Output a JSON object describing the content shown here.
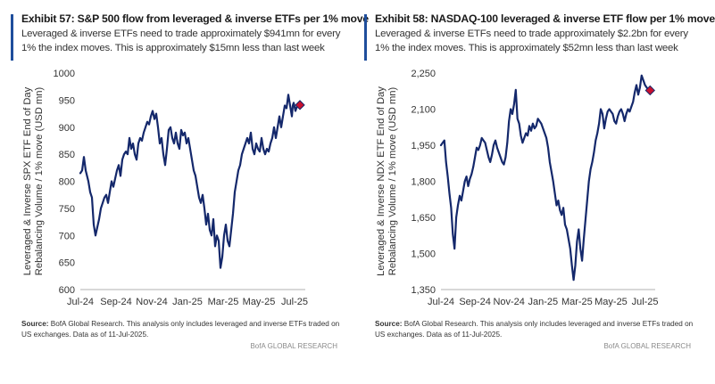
{
  "panels": [
    {
      "title": "Exhibit 57: S&P 500 flow from leveraged & inverse ETFs per 1% move",
      "subtitle": "Leveraged & inverse ETFs need to trade approximately $941mn for every 1% the index moves. This is approximately $15mn less than last week",
      "source_label": "Source:",
      "source_text": " BofA Global Research.  This analysis only includes leveraged and inverse ETFs traded on US exchanges.  Data as of 11-Jul-2025.",
      "brand": "BofA GLOBAL RESEARCH"
    },
    {
      "title": "Exhibit 58: NASDAQ-100 leveraged & inverse ETF flow per 1% move",
      "subtitle": "Leveraged & inverse ETFs need to trade approximately $2.2bn for every 1% the index moves. This is approximately $52mn less than last week",
      "source_label": "Source:",
      "source_text": " BofA Global Research.  This analysis only includes leveraged and inverse ETFs traded on US exchanges.  Data as of 11-Jul-2025.",
      "brand": "BofA GLOBAL RESEARCH"
    }
  ],
  "colors": {
    "line": "#14286b",
    "marker": "#c8102e",
    "accent": "#1f4e9c"
  },
  "chart_data": [
    {
      "type": "line",
      "ylabel_lines": [
        "Leveraged & Inverse SPX ETF End of Day",
        "Rebalancing Volume / 1% move (USD mn)"
      ],
      "ylim": [
        600,
        1000
      ],
      "yticks": [
        600,
        650,
        700,
        750,
        800,
        850,
        900,
        950,
        1000
      ],
      "ytick_labels": [
        "600",
        "650",
        "700",
        "750",
        "800",
        "850",
        "900",
        "950",
        "1000"
      ],
      "xlim": [
        0,
        12.6
      ],
      "xticks": [
        0,
        2,
        4,
        6,
        8,
        10,
        12
      ],
      "xtick_labels": [
        "Jul-24",
        "Sep-24",
        "Nov-24",
        "Jan-25",
        "Mar-25",
        "May-25",
        "Jul-25"
      ],
      "grid": false,
      "marker_last": true,
      "series": [
        {
          "x": [
            0,
            0.1,
            0.2,
            0.3,
            0.45,
            0.55,
            0.65,
            0.75,
            0.85,
            0.95,
            1.05,
            1.15,
            1.25,
            1.35,
            1.45,
            1.55,
            1.65,
            1.75,
            1.85,
            1.95,
            2.05,
            2.15,
            2.25,
            2.35,
            2.45,
            2.55,
            2.65,
            2.75,
            2.85,
            2.95,
            3.05,
            3.15,
            3.25,
            3.35,
            3.45,
            3.55,
            3.65,
            3.75,
            3.85,
            3.95,
            4.05,
            4.15,
            4.25,
            4.35,
            4.45,
            4.55,
            4.65,
            4.75,
            4.85,
            4.95,
            5.05,
            5.15,
            5.25,
            5.35,
            5.45,
            5.55,
            5.65,
            5.75,
            5.85,
            5.95,
            6.05,
            6.15,
            6.25,
            6.35,
            6.45,
            6.55,
            6.65,
            6.75,
            6.85,
            6.95,
            7.05,
            7.15,
            7.25,
            7.35,
            7.45,
            7.55,
            7.65,
            7.75,
            7.85,
            7.95,
            8.05,
            8.15,
            8.25,
            8.35,
            8.45,
            8.55,
            8.65,
            8.75,
            8.85,
            8.95,
            9.05,
            9.15,
            9.25,
            9.35,
            9.45,
            9.55,
            9.65,
            9.75,
            9.85,
            9.95,
            10.05,
            10.15,
            10.25,
            10.35,
            10.45,
            10.55,
            10.65,
            10.75,
            10.85,
            10.95,
            11.05,
            11.15,
            11.25,
            11.35,
            11.45,
            11.55,
            11.65,
            11.75,
            11.85,
            11.9,
            11.95,
            12.05,
            12.15,
            12.2,
            12.3
          ],
          "y": [
            815,
            820,
            845,
            820,
            800,
            780,
            770,
            720,
            700,
            715,
            730,
            750,
            760,
            770,
            775,
            760,
            780,
            800,
            790,
            805,
            820,
            830,
            810,
            840,
            850,
            855,
            850,
            880,
            860,
            870,
            850,
            840,
            870,
            880,
            875,
            890,
            900,
            910,
            905,
            920,
            930,
            915,
            925,
            900,
            870,
            880,
            850,
            830,
            860,
            895,
            900,
            880,
            870,
            890,
            870,
            860,
            895,
            885,
            890,
            870,
            880,
            860,
            840,
            820,
            810,
            790,
            770,
            760,
            775,
            750,
            720,
            740,
            710,
            700,
            730,
            680,
            700,
            690,
            640,
            660,
            700,
            720,
            690,
            680,
            710,
            740,
            780,
            800,
            820,
            830,
            850,
            860,
            870,
            880,
            870,
            890,
            860,
            850,
            870,
            860,
            855,
            880,
            860,
            850,
            860,
            855,
            870,
            880,
            900,
            880,
            900,
            920,
            900,
            920,
            940,
            935,
            960,
            940,
            920,
            940,
            945,
            930,
            940,
            940,
            941
          ]
        }
      ]
    },
    {
      "type": "line",
      "ylabel_lines": [
        "Leveraged & Inverse NDX ETF End of Day",
        "Rebalancing Volume / 1% move (USD mn)"
      ],
      "ylim": [
        1350,
        2250
      ],
      "yticks": [
        1350,
        1500,
        1650,
        1800,
        1950,
        2100,
        2250
      ],
      "ytick_labels": [
        "1,350",
        "1,500",
        "1,650",
        "1,800",
        "1,950",
        "2,100",
        "2,250"
      ],
      "xlim": [
        0,
        12.6
      ],
      "xticks": [
        0,
        2,
        4,
        6,
        8,
        10,
        12
      ],
      "xtick_labels": [
        "Jul-24",
        "Sep-24",
        "Nov-24",
        "Jan-25",
        "Mar-25",
        "May-25",
        "Jul-25"
      ],
      "grid": false,
      "marker_last": true,
      "series": [
        {
          "x": [
            0,
            0.1,
            0.2,
            0.3,
            0.4,
            0.5,
            0.6,
            0.7,
            0.8,
            0.9,
            1.0,
            1.1,
            1.2,
            1.3,
            1.4,
            1.5,
            1.6,
            1.7,
            1.8,
            1.9,
            2.0,
            2.1,
            2.2,
            2.3,
            2.4,
            2.5,
            2.6,
            2.7,
            2.8,
            2.9,
            3.0,
            3.1,
            3.2,
            3.3,
            3.4,
            3.5,
            3.6,
            3.7,
            3.8,
            3.9,
            4.0,
            4.1,
            4.2,
            4.3,
            4.4,
            4.5,
            4.6,
            4.7,
            4.8,
            4.9,
            5.0,
            5.1,
            5.2,
            5.3,
            5.4,
            5.5,
            5.6,
            5.7,
            5.8,
            5.9,
            6.0,
            6.1,
            6.2,
            6.3,
            6.4,
            6.5,
            6.6,
            6.7,
            6.8,
            6.9,
            7.0,
            7.1,
            7.2,
            7.3,
            7.4,
            7.5,
            7.6,
            7.7,
            7.8,
            7.9,
            8.0,
            8.1,
            8.2,
            8.3,
            8.4,
            8.5,
            8.6,
            8.7,
            8.8,
            8.9,
            9.0,
            9.1,
            9.2,
            9.3,
            9.4,
            9.5,
            9.6,
            9.7,
            9.8,
            9.9,
            10.0,
            10.1,
            10.2,
            10.3,
            10.4,
            10.5,
            10.6,
            10.7,
            10.8,
            10.9,
            11.0,
            11.1,
            11.2,
            11.3,
            11.4,
            11.5,
            11.6,
            11.7,
            11.8,
            11.9,
            12.0,
            12.1,
            12.2,
            12.3
          ],
          "y": [
            1950,
            1960,
            1970,
            1880,
            1820,
            1750,
            1690,
            1580,
            1520,
            1650,
            1700,
            1740,
            1720,
            1760,
            1800,
            1820,
            1780,
            1810,
            1830,
            1860,
            1900,
            1940,
            1930,
            1950,
            1980,
            1970,
            1960,
            1930,
            1900,
            1880,
            1910,
            1950,
            1970,
            1940,
            1920,
            1900,
            1880,
            1870,
            1900,
            1960,
            2050,
            2100,
            2080,
            2120,
            2180,
            2060,
            2040,
            1990,
            1960,
            1980,
            2000,
            1990,
            2030,
            2010,
            2040,
            2020,
            2030,
            2060,
            2050,
            2040,
            2020,
            2000,
            1980,
            1940,
            1880,
            1840,
            1800,
            1750,
            1700,
            1720,
            1680,
            1660,
            1690,
            1620,
            1600,
            1560,
            1520,
            1450,
            1390,
            1450,
            1550,
            1600,
            1520,
            1470,
            1560,
            1640,
            1720,
            1800,
            1850,
            1880,
            1920,
            1970,
            2000,
            2040,
            2100,
            2080,
            2020,
            2060,
            2090,
            2100,
            2090,
            2080,
            2050,
            2040,
            2070,
            2090,
            2100,
            2080,
            2050,
            2080,
            2100,
            2090,
            2110,
            2130,
            2170,
            2200,
            2160,
            2190,
            2240,
            2220,
            2200,
            2190,
            2180,
            2178
          ]
        }
      ]
    }
  ]
}
